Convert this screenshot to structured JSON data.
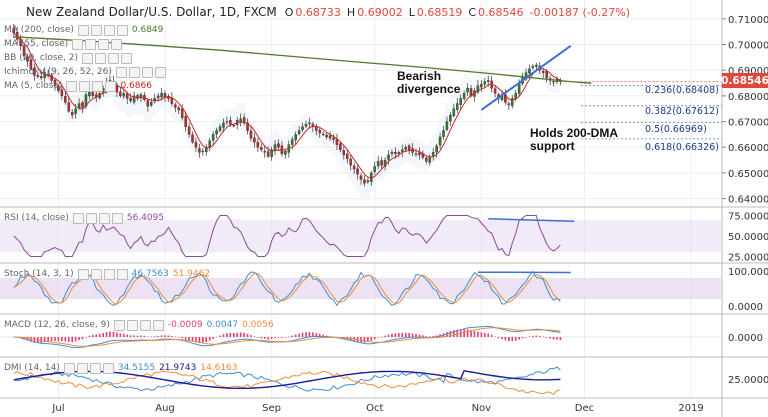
{
  "header": {
    "symbol": "New Zealand Dollar/U.S. Dollar, 1D, FXCM",
    "o_label": "O",
    "o": "0.68733",
    "h_label": "H",
    "h": "0.69002",
    "l_label": "L",
    "l": "0.68519",
    "c_label": "C",
    "c": "0.68546",
    "change": "-0.00187 (-0.27%)"
  },
  "legends": [
    {
      "label": "MA (200, close)",
      "value": "0.6849",
      "color": "#4f7a2a"
    },
    {
      "label": "MA (55, close)",
      "value": "",
      "color": "#999999"
    },
    {
      "label": "BB (20, close, 2)",
      "value": "",
      "color": "#999999"
    },
    {
      "label": "Ichimoku (9, 26, 52, 26)",
      "value": "",
      "color": "#999999"
    },
    {
      "label": "MA (5, close)",
      "value": "0.6866",
      "color": "#c62828"
    }
  ],
  "annotations": {
    "bearish": [
      "Bearish",
      "divergence"
    ],
    "holds": [
      "Holds 200-DMA",
      "support"
    ]
  },
  "fib_levels": [
    {
      "label": "0.236(0.68408)",
      "value": 0.68408
    },
    {
      "label": "0.382(0.67612)",
      "value": 0.67612
    },
    {
      "label": "0.5(0.66969)",
      "value": 0.66969
    },
    {
      "label": "0.618(0.66326)",
      "value": 0.66326
    }
  ],
  "price_tag": "0.68546",
  "colors": {
    "up": "#2e7d32",
    "down": "#c62828",
    "ma200": "#4f7a2a",
    "ma5": "#c62828",
    "trend": "#3d6fd6",
    "rsi": "#8e4a9e",
    "band": "#e6d8f0",
    "stoch_k": "#3d8fd6",
    "stoch_d": "#f08c3a",
    "macd": "#3d8fd6",
    "signal": "#f08c3a",
    "hist": "#e53b6e",
    "dmi_plus": "#3d8fd6",
    "dmi_minus": "#f08c3a",
    "adx": "#1a1a9a"
  },
  "panes": {
    "rsi": {
      "label": "RSI (14, close)",
      "value": "56.4095",
      "ticks": [
        "75.0000",
        "50.0000",
        "25.0000"
      ]
    },
    "stoch": {
      "label": "Stoch (14, 3, 1)",
      "k": "46.7563",
      "d": "51.9462",
      "ticks": [
        "100.0000",
        "0.0000"
      ]
    },
    "macd": {
      "label": "MACD (12, 26, close, 9)",
      "hist": "-0.0009",
      "macd": "0.0047",
      "signal": "0.0056",
      "ticks": [
        "0.0000"
      ]
    },
    "dmi": {
      "label": "DMI (14, 14)",
      "plus": "34.5155",
      "minus": "21.9743",
      "adx": "14.6163",
      "ticks": [
        "25.0000"
      ]
    }
  },
  "chart_data": {
    "type": "candlestick",
    "y_ticks": [
      "0.71000",
      "0.70000",
      "0.69000",
      "0.68000",
      "0.67000",
      "0.66000",
      "0.65000",
      "0.64000"
    ],
    "y_tick_values": [
      0.71,
      0.7,
      0.69,
      0.68,
      0.67,
      0.66,
      0.65,
      0.64
    ],
    "ylim": [
      0.6375,
      0.715
    ],
    "x_ticks": [
      "Jul",
      "Aug",
      "Sep",
      "Oct",
      "Nov",
      "Dec",
      "2019"
    ],
    "x_tick_day": [
      13,
      44,
      75,
      105,
      136,
      166,
      197
    ],
    "day_range": [
      -4,
      206
    ],
    "closes": [
      0.7045,
      0.702,
      0.6995,
      0.6955,
      0.6935,
      0.6905,
      0.688,
      0.6875,
      0.687,
      0.689,
      0.688,
      0.686,
      0.684,
      0.682,
      0.68,
      0.6775,
      0.674,
      0.6725,
      0.675,
      0.677,
      0.6755,
      0.6805,
      0.6815,
      0.68,
      0.6795,
      0.681,
      0.683,
      0.685,
      0.686,
      0.6845,
      0.6815,
      0.68,
      0.681,
      0.679,
      0.678,
      0.68,
      0.679,
      0.6805,
      0.6785,
      0.676,
      0.6775,
      0.679,
      0.68,
      0.681,
      0.6795,
      0.679,
      0.677,
      0.6755,
      0.6745,
      0.6715,
      0.668,
      0.665,
      0.662,
      0.66,
      0.658,
      0.6585,
      0.66,
      0.6625,
      0.665,
      0.6665,
      0.668,
      0.6695,
      0.67,
      0.669,
      0.6685,
      0.6705,
      0.671,
      0.6695,
      0.6665,
      0.6635,
      0.662,
      0.66,
      0.659,
      0.658,
      0.6565,
      0.659,
      0.661,
      0.66,
      0.6575,
      0.6585,
      0.661,
      0.663,
      0.665,
      0.6665,
      0.668,
      0.669,
      0.6695,
      0.668,
      0.6665,
      0.6655,
      0.665,
      0.664,
      0.6635,
      0.663,
      0.661,
      0.659,
      0.657,
      0.6555,
      0.653,
      0.6515,
      0.6495,
      0.6475,
      0.646,
      0.647,
      0.65,
      0.6525,
      0.6545,
      0.653,
      0.655,
      0.657,
      0.658,
      0.6575,
      0.658,
      0.659,
      0.66,
      0.659,
      0.658,
      0.6575,
      0.657,
      0.656,
      0.6545,
      0.656,
      0.658,
      0.6605,
      0.664,
      0.6665,
      0.67,
      0.6725,
      0.675,
      0.677,
      0.679,
      0.681,
      0.683,
      0.68,
      0.682,
      0.684,
      0.6845,
      0.6855,
      0.686,
      0.683,
      0.681,
      0.679,
      0.68,
      0.6775,
      0.6765,
      0.679,
      0.681,
      0.685,
      0.687,
      0.689,
      0.6905,
      0.6915,
      0.692,
      0.69,
      0.689,
      0.687,
      0.686,
      0.6855,
      0.6865,
      0.6855
    ],
    "ma200": {
      "day": [
        0,
        20,
        40,
        60,
        80,
        100,
        120,
        140,
        160,
        168
      ],
      "value": [
        0.703,
        0.7015,
        0.6997,
        0.6978,
        0.6955,
        0.6932,
        0.691,
        0.6885,
        0.6858,
        0.6849
      ]
    },
    "trendlines": [
      {
        "name": "price",
        "from": {
          "day": 136,
          "value": 0.6745
        },
        "to": {
          "day": 162,
          "value": 0.6995
        }
      },
      {
        "name": "rsi",
        "from": {
          "day": 138,
          "value": 71
        },
        "to": {
          "day": 163,
          "value": 68
        }
      },
      {
        "name": "stoch",
        "from": {
          "day": 135,
          "value": 96
        },
        "to": {
          "day": 162,
          "value": 95
        }
      }
    ]
  }
}
